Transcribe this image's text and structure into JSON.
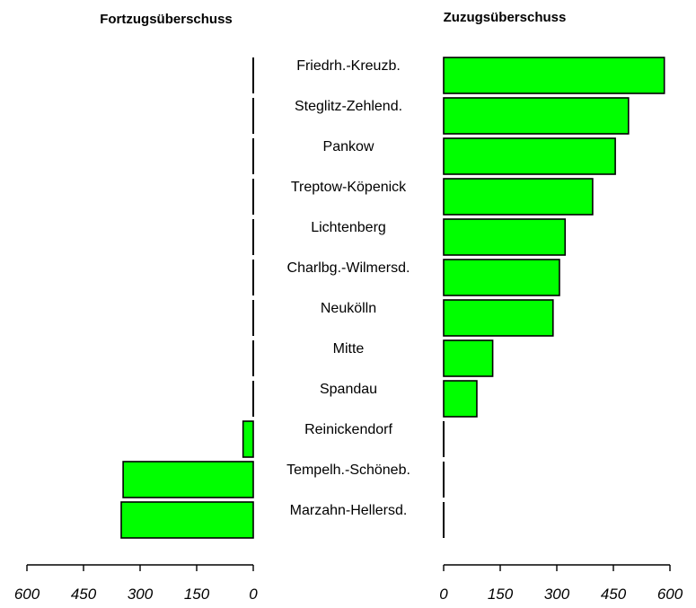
{
  "chart_data": {
    "type": "bar",
    "orientation": "horizontal",
    "left_panel_title": "Fortzugsüberschuss",
    "right_panel_title": "Zuzugsüberschuss",
    "categories": [
      "Friedrh.-Kreuzb.",
      "Steglitz-Zehlend.",
      "Pankow",
      "Treptow-Köpenick",
      "Lichtenberg",
      "Charlbg.-Wilmersd.",
      "Neukölln",
      "Mitte",
      "Spandau",
      "Reinickendorf",
      "Tempelh.-Schöneb.",
      "Marzahn-Hellersd."
    ],
    "fortzug_values": [
      0,
      0,
      0,
      0,
      0,
      0,
      0,
      0,
      0,
      27,
      345,
      350
    ],
    "zuzug_values": [
      585,
      490,
      455,
      395,
      322,
      307,
      290,
      130,
      88,
      0,
      0,
      0
    ],
    "xlim": [
      0,
      600
    ],
    "x_ticks_left": [
      "600",
      "450",
      "300",
      "150",
      "0"
    ],
    "x_ticks_right": [
      "0",
      "150",
      "300",
      "450",
      "600"
    ],
    "bar_color": "#00ff00"
  }
}
